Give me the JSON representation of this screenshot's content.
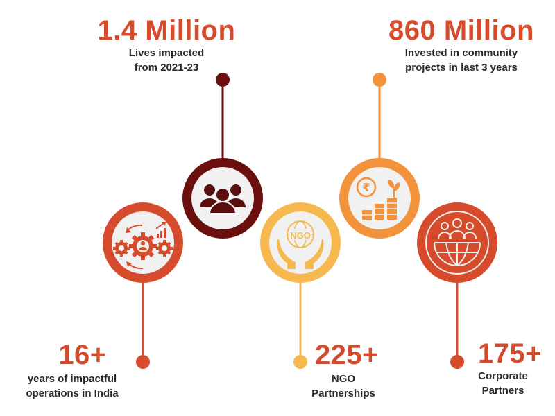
{
  "colors": {
    "red": "#d54b2c",
    "dark_red": "#6b0e0e",
    "light_orange": "#f7b84f",
    "orange": "#f2923a",
    "inner_fill": "#f1f1f1",
    "icon_dark": "#5a0f0f"
  },
  "stats": [
    {
      "id": "years",
      "value": "16+",
      "caption_line1": "years of impactful",
      "caption_line2": "operations in India",
      "icon": "gears-user-icon",
      "color_key": "red"
    },
    {
      "id": "lives",
      "value": "1.4 Million",
      "caption_line1": "Lives impacted",
      "caption_line2": "from 2021-23",
      "icon": "people-group-icon",
      "color_key": "dark_red"
    },
    {
      "id": "ngo",
      "value": "225+",
      "caption_line1": "NGO",
      "caption_line2": "Partnerships",
      "icon": "ngo-hands-icon",
      "badge_text": "NGO",
      "color_key": "light_orange"
    },
    {
      "id": "invested",
      "value": "860 Million",
      "caption_line1": "Invested in community",
      "caption_line2": "projects in last 3 years",
      "icon": "rupee-growth-icon",
      "color_key": "orange"
    },
    {
      "id": "corporate",
      "value": "175+",
      "caption_line1": "Corporate",
      "caption_line2": "Partners",
      "icon": "globe-people-icon",
      "color_key": "red"
    }
  ]
}
